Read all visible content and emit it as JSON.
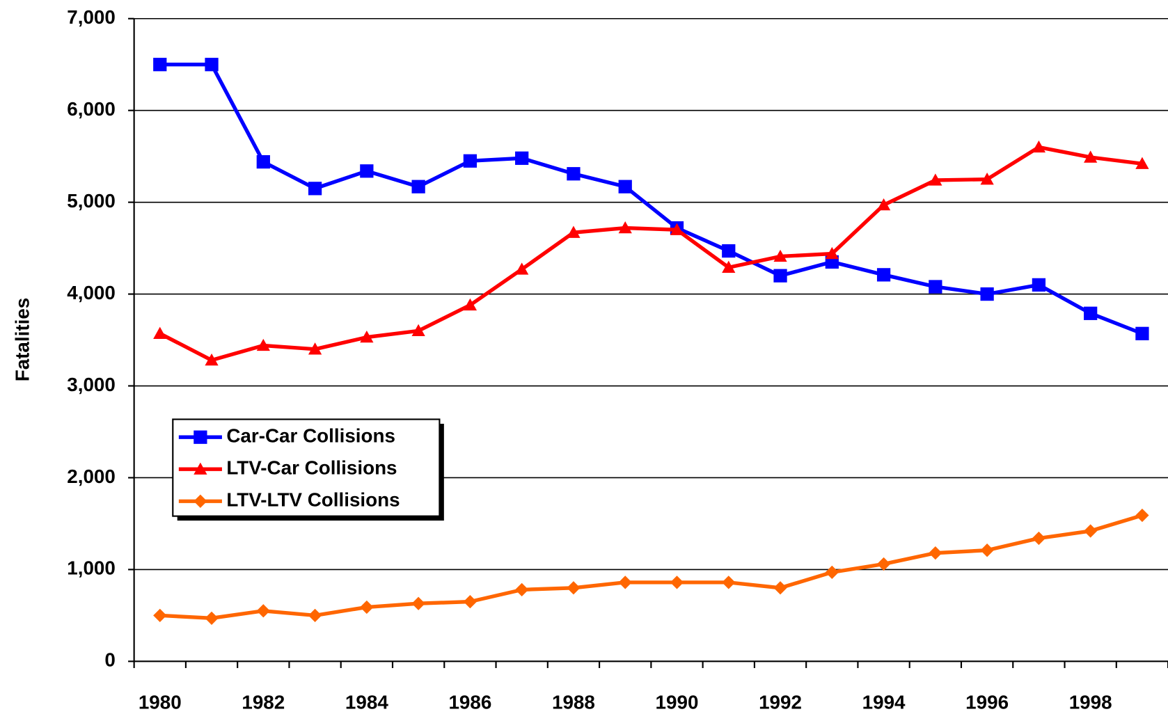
{
  "chart_data": {
    "type": "line",
    "y_label": "Fatalities",
    "categories": [
      "1980",
      null,
      "1982",
      null,
      "1984",
      null,
      "1986",
      null,
      "1988",
      null,
      "1990",
      null,
      "1992",
      null,
      "1994",
      null,
      "1996",
      null,
      "1998",
      null
    ],
    "ylim": [
      0,
      7000
    ],
    "yticks": [
      0,
      {
        "value": 1000,
        "label": "1,000"
      },
      {
        "value": 2000,
        "label": "2,000"
      },
      {
        "value": 3000,
        "label": "3,000"
      },
      {
        "value": 4000,
        "label": "4,000"
      },
      {
        "value": 5000,
        "label": "5,000"
      },
      {
        "value": 6000,
        "label": "6,000"
      },
      {
        "value": 7000,
        "label": "7,000"
      }
    ],
    "grid": true,
    "legend": "lower left",
    "series": [
      {
        "name": "Car-Car Collisions",
        "color": "#0000ff",
        "marker": "square",
        "values": [
          6500,
          6500,
          5440,
          5150,
          5340,
          5170,
          5450,
          5480,
          5310,
          5170,
          4720,
          4470,
          4200,
          4350,
          4210,
          4080,
          4000,
          4100,
          3790,
          3570
        ]
      },
      {
        "name": "LTV-Car Collisions",
        "color": "#ff0000",
        "marker": "triangle",
        "values": [
          3570,
          3280,
          3440,
          3400,
          3530,
          3600,
          3880,
          4270,
          4670,
          4720,
          4700,
          4290,
          4410,
          4440,
          4970,
          5240,
          5250,
          5600,
          5490,
          5420
        ]
      },
      {
        "name": "LTV-LTV Collisions",
        "color": "#ff6600",
        "marker": "diamond",
        "values": [
          500,
          470,
          550,
          500,
          590,
          630,
          650,
          780,
          800,
          860,
          860,
          860,
          800,
          970,
          1060,
          1180,
          1210,
          1340,
          1420,
          1590
        ]
      }
    ]
  }
}
